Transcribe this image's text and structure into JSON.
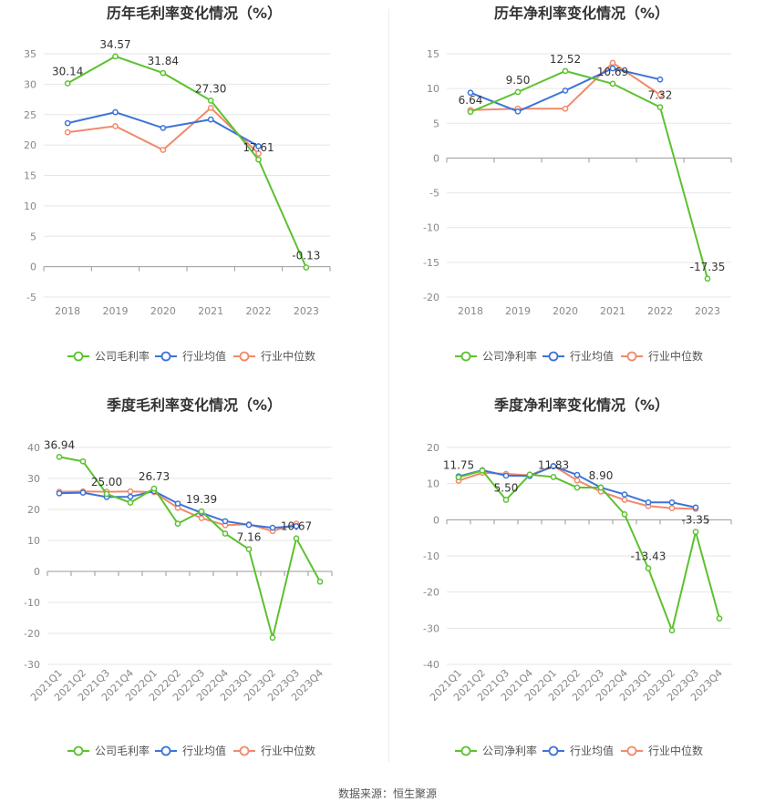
{
  "colors": {
    "company": "#5cc12f",
    "avg": "#3b73d9",
    "median": "#f08a6a",
    "grid": "#e6e6e6",
    "axis": "#888888",
    "text": "#333333"
  },
  "legend": {
    "company_gross": "公司毛利率",
    "company_net": "公司净利率",
    "avg": "行业均值",
    "median": "行业中位数"
  },
  "source": "数据来源：恒生聚源",
  "chart_data": [
    {
      "id": "annual-gross",
      "type": "line",
      "title": "历年毛利率变化情况（%）",
      "categories": [
        "2018",
        "2019",
        "2020",
        "2021",
        "2022",
        "2023"
      ],
      "ylim": [
        -5,
        35
      ],
      "yticks": [
        -5,
        0,
        5,
        10,
        15,
        20,
        25,
        30,
        35
      ],
      "series": [
        {
          "name": "公司毛利率",
          "key": "company",
          "values": [
            30.14,
            34.57,
            31.84,
            27.3,
            17.61,
            -0.13
          ],
          "labels": [
            "30.14",
            "34.57",
            "31.84",
            "27.30",
            "17.61",
            "-0.13"
          ]
        },
        {
          "name": "行业均值",
          "key": "avg",
          "values": [
            23.6,
            25.4,
            22.8,
            24.2,
            19.8,
            null
          ]
        },
        {
          "name": "行业中位数",
          "key": "median",
          "values": [
            22.1,
            23.1,
            19.2,
            26.1,
            18.6,
            null
          ]
        }
      ]
    },
    {
      "id": "annual-net",
      "type": "line",
      "title": "历年净利率变化情况（%）",
      "categories": [
        "2018",
        "2019",
        "2020",
        "2021",
        "2022",
        "2023"
      ],
      "ylim": [
        -20,
        15
      ],
      "yticks": [
        -20,
        -15,
        -10,
        -5,
        0,
        5,
        10,
        15
      ],
      "series": [
        {
          "name": "公司净利率",
          "key": "company",
          "values": [
            6.64,
            9.5,
            12.52,
            10.69,
            7.32,
            -17.35
          ],
          "labels": [
            "6.64",
            "9.50",
            "12.52",
            "10.69",
            "7.32",
            "-17.35"
          ]
        },
        {
          "name": "行业均值",
          "key": "avg",
          "values": [
            9.4,
            6.7,
            9.7,
            12.9,
            11.3,
            null
          ]
        },
        {
          "name": "行业中位数",
          "key": "median",
          "values": [
            6.9,
            7.1,
            7.1,
            13.7,
            9.1,
            null
          ]
        }
      ]
    },
    {
      "id": "quarterly-gross",
      "type": "line",
      "title": "季度毛利率变化情况（%）",
      "categories": [
        "2021Q1",
        "2021Q2",
        "2021Q3",
        "2021Q4",
        "2022Q1",
        "2022Q2",
        "2022Q3",
        "2022Q4",
        "2023Q1",
        "2023Q2",
        "2023Q3",
        "2023Q4"
      ],
      "ylim": [
        -30,
        40
      ],
      "yticks": [
        -30,
        -20,
        -10,
        0,
        10,
        20,
        30,
        40
      ],
      "series": [
        {
          "name": "公司毛利率",
          "key": "company",
          "values": [
            36.94,
            35.5,
            25.0,
            22.2,
            26.73,
            15.4,
            19.39,
            12.2,
            7.16,
            -21.4,
            10.67,
            -3.3
          ],
          "labels": [
            "36.94",
            "",
            "25.00",
            "",
            "26.73",
            "",
            "19.39",
            "",
            "7.16",
            "",
            "10.67",
            ""
          ]
        },
        {
          "name": "行业均值",
          "key": "avg",
          "values": [
            25.2,
            25.4,
            24.0,
            24.1,
            25.9,
            21.9,
            18.9,
            16.2,
            15.0,
            14.1,
            14.6,
            null
          ]
        },
        {
          "name": "行业中位数",
          "key": "median",
          "values": [
            25.7,
            25.8,
            25.7,
            25.8,
            25.6,
            20.5,
            17.2,
            14.9,
            15.2,
            13.0,
            15.4,
            null
          ]
        }
      ]
    },
    {
      "id": "quarterly-net",
      "type": "line",
      "title": "季度净利率变化情况（%）",
      "categories": [
        "2021Q1",
        "2021Q2",
        "2021Q3",
        "2021Q4",
        "2022Q1",
        "2022Q2",
        "2022Q3",
        "2022Q4",
        "2023Q1",
        "2023Q2",
        "2023Q3",
        "2023Q4"
      ],
      "ylim": [
        -40,
        20
      ],
      "yticks": [
        -40,
        -30,
        -20,
        -10,
        0,
        10,
        20
      ],
      "series": [
        {
          "name": "公司净利率",
          "key": "company",
          "values": [
            11.75,
            13.6,
            5.5,
            12.5,
            11.83,
            8.9,
            8.9,
            1.5,
            -13.43,
            -30.6,
            -3.35,
            -27.3
          ],
          "labels": [
            "11.75",
            "",
            "5.50",
            "",
            "11.83",
            "",
            "8.90",
            "",
            "-13.43",
            "",
            "-3.35",
            ""
          ]
        },
        {
          "name": "行业均值",
          "key": "avg",
          "values": [
            12.0,
            13.7,
            12.2,
            12.1,
            14.8,
            12.4,
            8.9,
            7.0,
            4.8,
            4.8,
            3.4,
            null
          ]
        },
        {
          "name": "行业中位数",
          "key": "median",
          "values": [
            10.8,
            13.0,
            12.7,
            12.3,
            14.9,
            10.9,
            7.8,
            5.5,
            3.8,
            3.2,
            3.0,
            null
          ]
        }
      ]
    }
  ]
}
